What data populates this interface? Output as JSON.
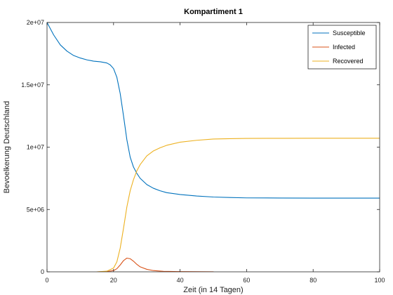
{
  "chart_data": {
    "type": "line",
    "title": "Kompartiment 1",
    "xlabel": "Zeit (in 14 Tagen)",
    "ylabel": "Bevoelkerung Deutschland",
    "xlim": [
      0,
      100
    ],
    "ylim": [
      0,
      20000000
    ],
    "x_ticks": [
      0,
      20,
      40,
      60,
      80,
      100
    ],
    "x_tick_labels": [
      "0",
      "20",
      "40",
      "60",
      "80",
      "100"
    ],
    "y_ticks": [
      0,
      5000000,
      10000000,
      15000000,
      20000000
    ],
    "y_tick_labels": [
      "0",
      "5e+06",
      "1e+07",
      "1.5e+07",
      "2e+07"
    ],
    "grid": false,
    "legend_position": "top-right",
    "series": [
      {
        "name": "Susceptible",
        "color": "#0072BD",
        "x": [
          0,
          2,
          4,
          6,
          8,
          10,
          12,
          14,
          16,
          18,
          19,
          20,
          21,
          22,
          23,
          24,
          25,
          26,
          27,
          28,
          30,
          32,
          34,
          36,
          40,
          45,
          50,
          55,
          60,
          70,
          80,
          90,
          100
        ],
        "y": [
          20000000,
          19000000,
          18200000,
          17700000,
          17350000,
          17150000,
          17000000,
          16900000,
          16850000,
          16750000,
          16600000,
          16300000,
          15600000,
          14300000,
          12500000,
          10600000,
          9200000,
          8400000,
          7900000,
          7500000,
          7000000,
          6700000,
          6500000,
          6350000,
          6200000,
          6080000,
          6000000,
          5960000,
          5930000,
          5920000,
          5910000,
          5910000,
          5910000
        ]
      },
      {
        "name": "Infected",
        "color": "#D95319",
        "x": [
          15,
          18,
          20,
          21,
          22,
          23,
          24,
          25,
          26,
          27,
          28,
          30,
          32,
          35,
          40,
          45,
          50
        ],
        "y": [
          0,
          20000,
          100000,
          250000,
          550000,
          900000,
          1100000,
          1050000,
          850000,
          600000,
          400000,
          200000,
          100000,
          40000,
          20000,
          10000,
          5000
        ]
      },
      {
        "name": "Recovered",
        "color": "#EDB120",
        "x": [
          15,
          18,
          20,
          21,
          22,
          23,
          24,
          25,
          26,
          27,
          28,
          30,
          32,
          34,
          36,
          40,
          45,
          50,
          55,
          60,
          70,
          80,
          90,
          100
        ],
        "y": [
          0,
          50000,
          300000,
          800000,
          1900000,
          3500000,
          5200000,
          6500000,
          7400000,
          8100000,
          8600000,
          9300000,
          9700000,
          9950000,
          10150000,
          10400000,
          10550000,
          10650000,
          10680000,
          10700000,
          10710000,
          10715000,
          10715000,
          10715000
        ]
      }
    ]
  }
}
